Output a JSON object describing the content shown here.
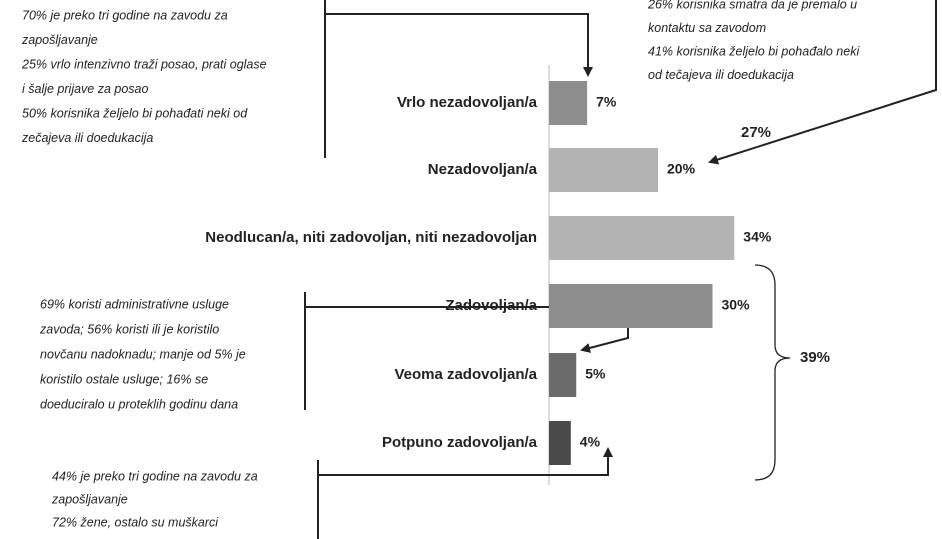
{
  "chart_data": {
    "type": "bar",
    "orientation": "horizontal",
    "categories": [
      "Vrlo nezadovoljan/a",
      "Nezadovoljan/a",
      "Neodlucan/a, niti zadovoljan, niti nezadovoljan",
      "Zadovoljan/a",
      "Veoma zadovoljan/a",
      "Potpuno zadovoljan/a"
    ],
    "values": [
      7,
      20,
      34,
      30,
      5,
      4
    ],
    "value_labels": [
      "7%",
      "20%",
      "34%",
      "30%",
      "5%",
      "4%"
    ],
    "colors": [
      "#8e8e8e",
      "#b3b3b3",
      "#b3b3b3",
      "#8e8e8e",
      "#6b6b6b",
      "#4a4a4a"
    ],
    "group_labels": [
      "27%",
      "39%"
    ],
    "annotations": {
      "top_left": [
        "70% je preko tri godine na zavodu za",
        "zapošljavanje",
        "25% vrlo intenzivno traži posao, prati oglase",
        "i šalje prijave za posao",
        "50% korisnika željelo bi pohađati neki od",
        "zečajeva ili doedukacija"
      ],
      "top_right": [
        "26% korisnika smatra da je premalo u",
        "kontaktu sa zavodom",
        "41% korisnika željelo bi pohađalo neki",
        "od tečajeva ili doedukacija"
      ],
      "middle_left": [
        "69% koristi administrativne usluge",
        "zavoda; 56% koristi ili je koristilo",
        "novčanu nadoknadu; manje od 5% je",
        "koristilo ostale usluge; 16% se",
        "doeduciralo u proteklih godinu dana"
      ],
      "bottom_left": [
        "44% je preko tri godine na zavodu za",
        "zapošljavanje",
        "72% žene, ostalo su muškarci"
      ]
    }
  }
}
